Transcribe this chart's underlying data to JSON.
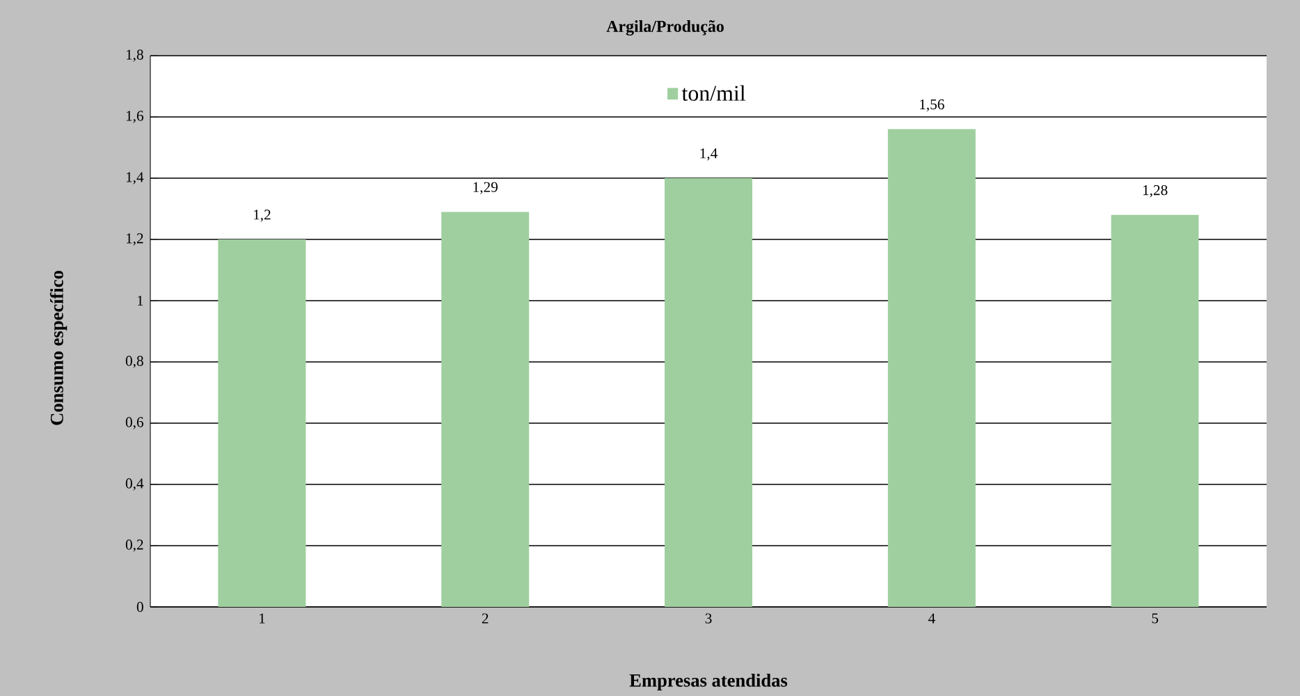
{
  "chart_data": {
    "type": "bar",
    "title": "Argila/Produção",
    "xlabel": "Empresas atendidas",
    "ylabel": "Consumo específico",
    "categories": [
      "1",
      "2",
      "3",
      "4",
      "5"
    ],
    "series": [
      {
        "name": "ton/mil",
        "color": "#9fcf9f",
        "values": [
          1.2,
          1.29,
          1.4,
          1.56,
          1.28
        ],
        "value_labels": [
          "1,2",
          "1,29",
          "1,4",
          "1,56",
          "1,28"
        ]
      }
    ],
    "ylim": [
      0,
      1.8
    ],
    "yticks": [
      0,
      {
        "value": 0.2,
        "label": "0,2"
      },
      {
        "value": 0.4,
        "label": "0,4"
      },
      {
        "value": 0.6,
        "label": "0,6"
      },
      {
        "value": 0.8,
        "label": "0,8"
      },
      1,
      {
        "value": 1.2,
        "label": "1,2"
      },
      {
        "value": 1.4,
        "label": "1,4"
      },
      {
        "value": 1.6,
        "label": "1,6"
      },
      {
        "value": 1.8,
        "label": "1,8"
      }
    ],
    "grid": "y",
    "legend": "top"
  }
}
